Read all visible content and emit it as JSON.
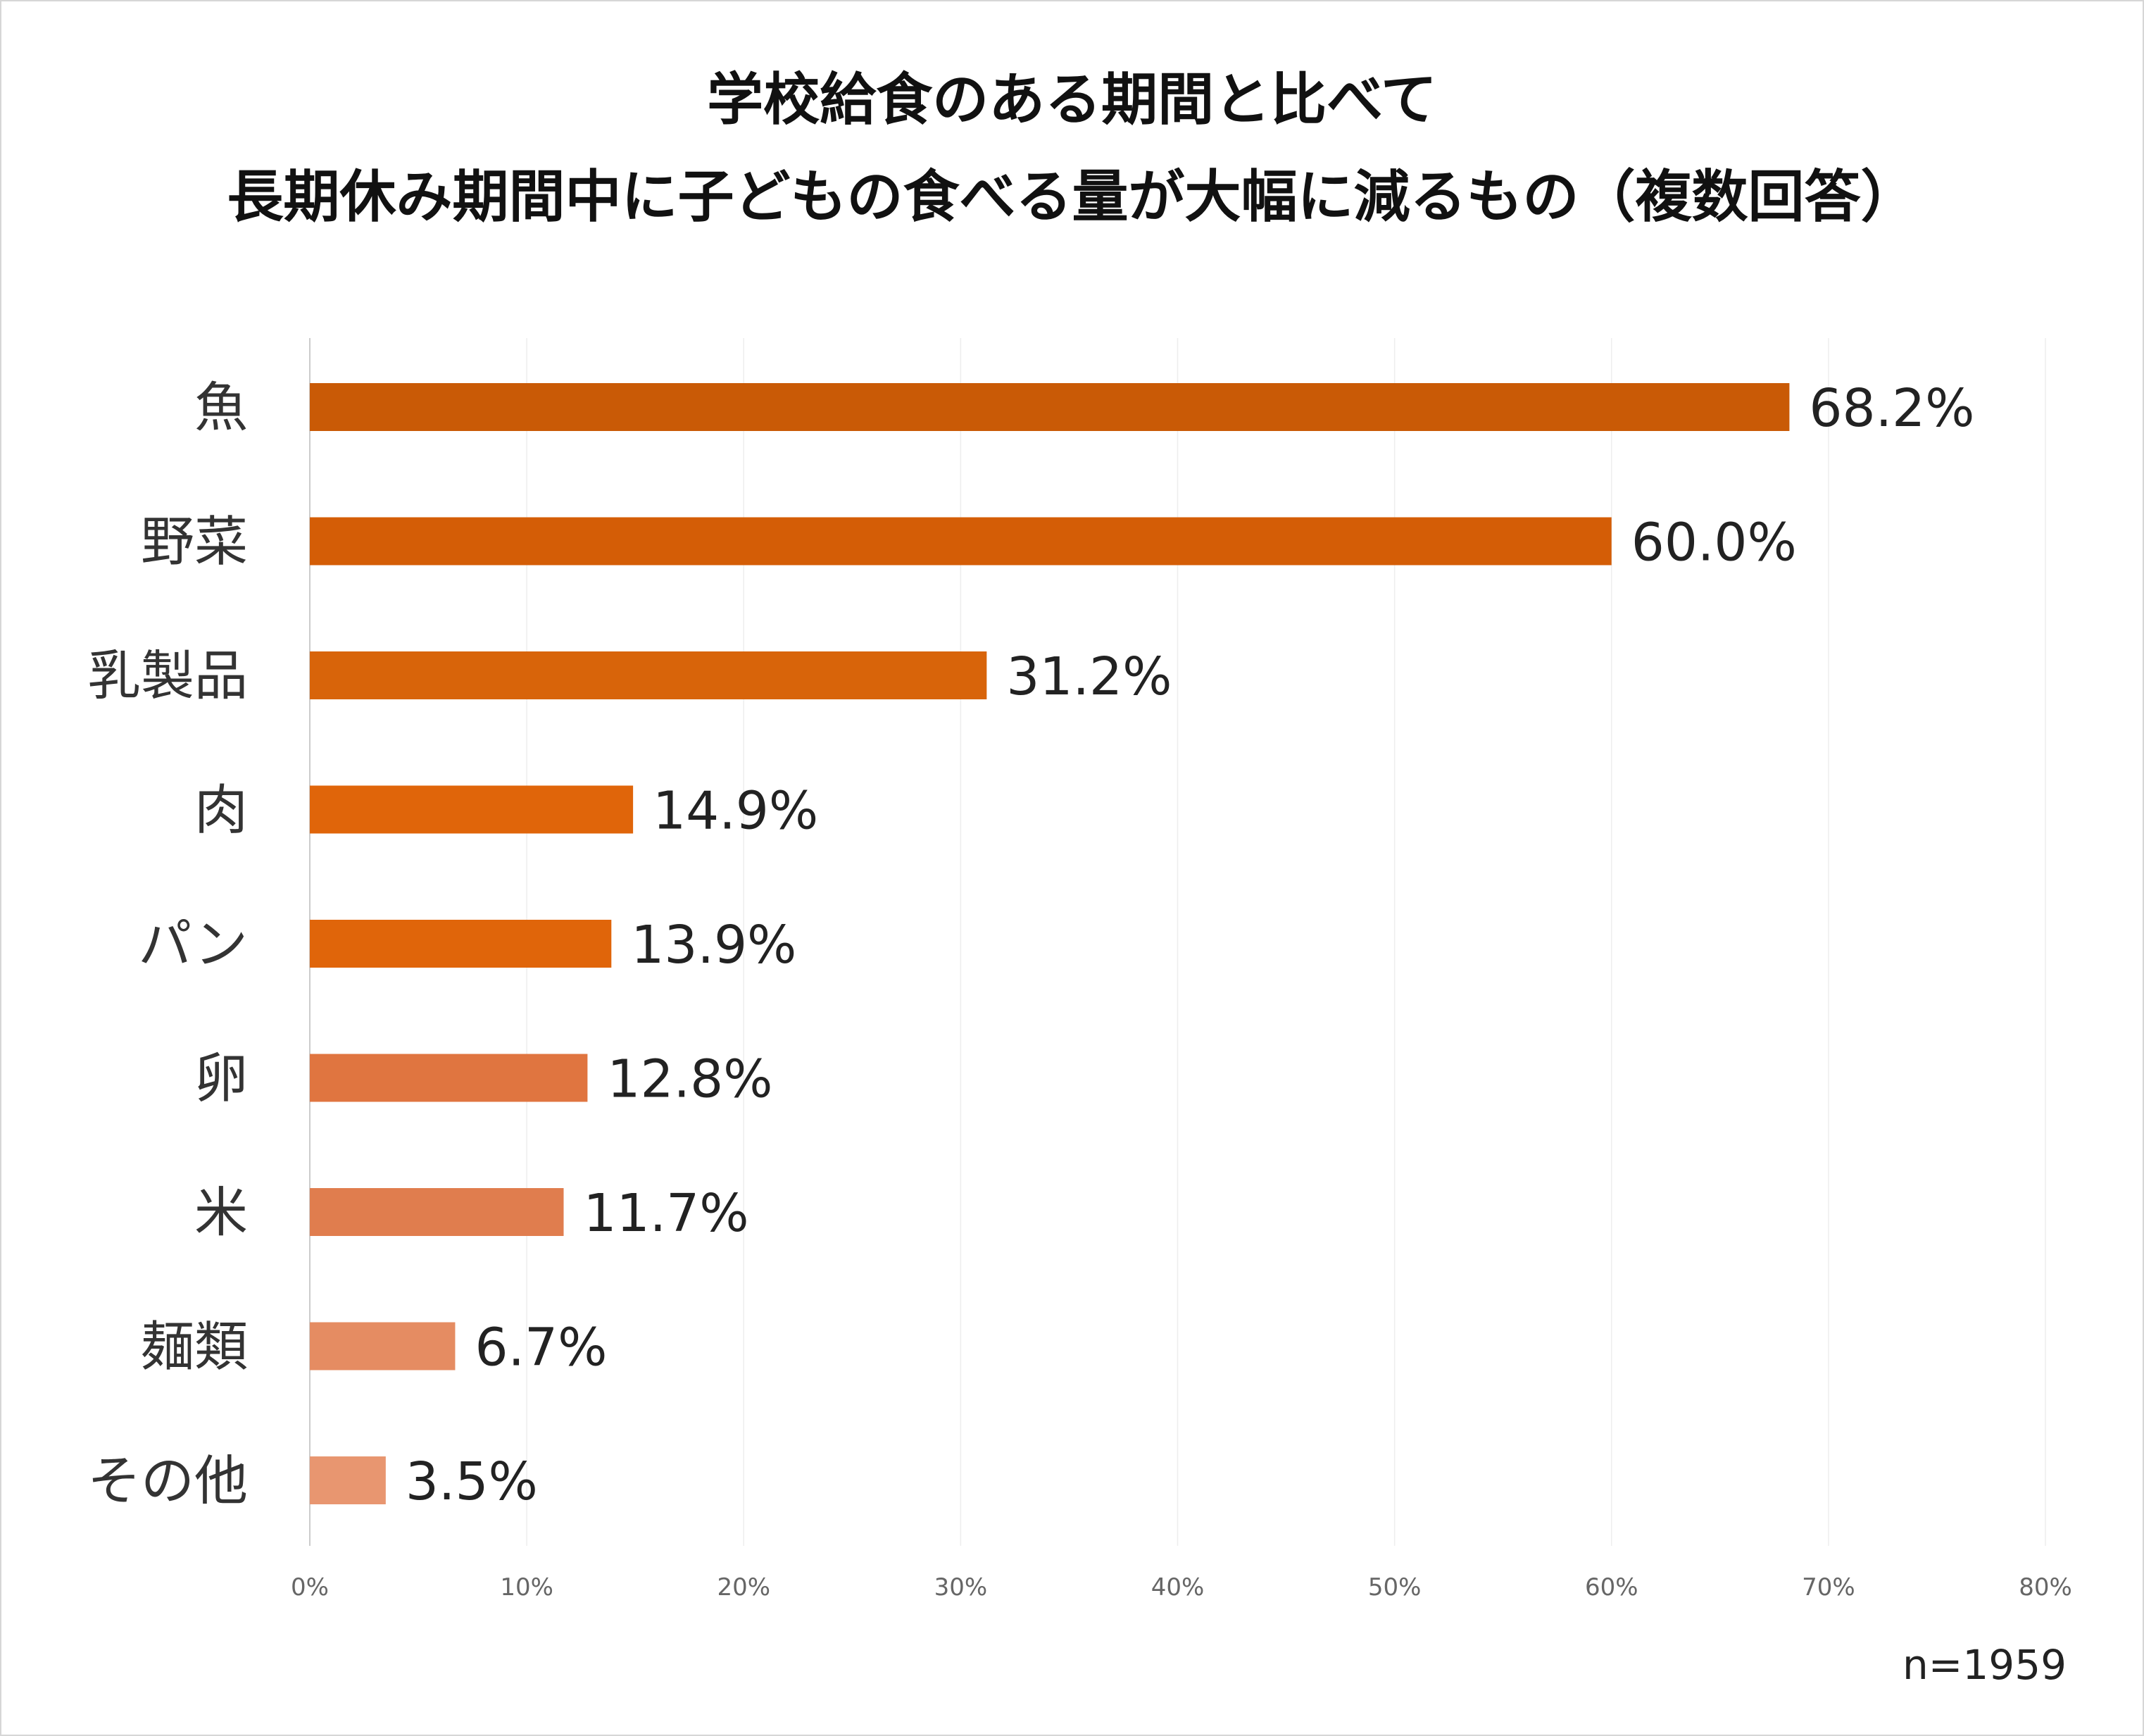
{
  "colors": {
    "bars": [
      "#c95a06",
      "#d45d06",
      "#d8640a",
      "#e0650a",
      "#e0650a",
      "#e07540",
      "#e07d4e",
      "#e58c62",
      "#e89670"
    ],
    "grid": "#eeeeee",
    "axis": "#cccccc"
  },
  "chart_data": {
    "type": "bar",
    "orientation": "horizontal",
    "title": [
      "学校給食のある期間と比べて",
      "長期休み期間中に子どもの食べる量が大幅に減るもの（複数回答）"
    ],
    "categories": [
      "魚",
      "野菜",
      "乳製品",
      "肉",
      "パン",
      "卵",
      "米",
      "麺類",
      "その他"
    ],
    "values": [
      68.2,
      60.0,
      31.2,
      14.9,
      13.9,
      12.8,
      11.7,
      6.7,
      3.5
    ],
    "value_labels": [
      "68.2%",
      "60.0%",
      "31.2%",
      "14.9%",
      "13.9%",
      "12.8%",
      "11.7%",
      "6.7%",
      "3.5%"
    ],
    "xlim": [
      0,
      80
    ],
    "xticks": [
      0,
      10,
      20,
      30,
      40,
      50,
      60,
      70,
      80
    ],
    "xtick_labels": [
      "0%",
      "10%",
      "20%",
      "30%",
      "40%",
      "50%",
      "60%",
      "70%",
      "80%"
    ],
    "xlabel": "",
    "ylabel": "",
    "grid": true,
    "note": "n=1959"
  }
}
